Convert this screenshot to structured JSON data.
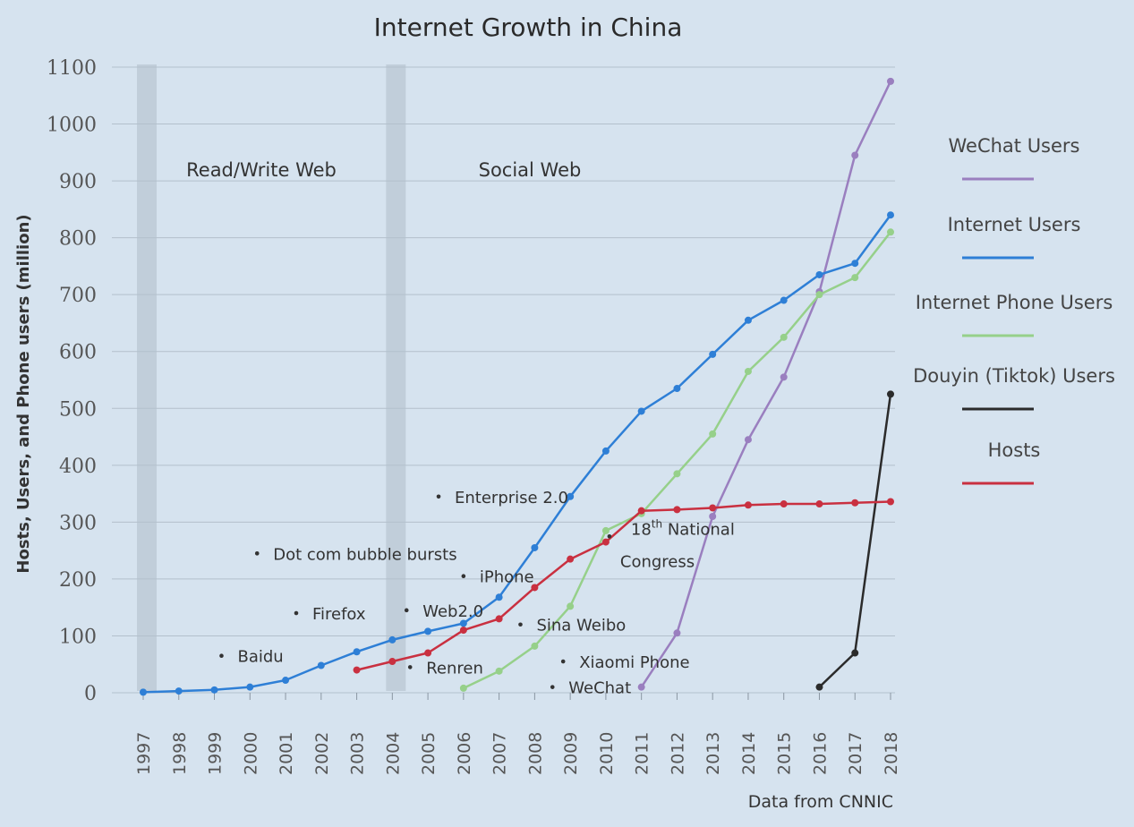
{
  "chart_data": {
    "type": "line",
    "title": "Internet Growth in China",
    "xlabel": "",
    "ylabel": "Hosts, Users, and Phone users (million)",
    "source": "Data from CNNIC",
    "ylim": [
      0,
      1100
    ],
    "yticks": [
      "0",
      "100",
      "200",
      "300",
      "400",
      "500",
      "600",
      "700",
      "800",
      "900",
      "1000",
      "1100"
    ],
    "categories": [
      "1997",
      "1998",
      "1999",
      "2000",
      "2001",
      "2002",
      "2003",
      "2004",
      "2005",
      "2006",
      "2007",
      "2008",
      "2009",
      "2010",
      "2011",
      "2012",
      "2013",
      "2014",
      "2015",
      "2016",
      "2017",
      "2018"
    ],
    "grid": true,
    "legend_position": "right",
    "eras": [
      {
        "label": "Read/Write Web",
        "start": "1997"
      },
      {
        "label": "Social Web",
        "start": "2004"
      }
    ],
    "series": [
      {
        "name": "WeChat Users",
        "color": "#9a7fbf",
        "values": [
          null,
          null,
          null,
          null,
          null,
          null,
          null,
          null,
          null,
          null,
          null,
          null,
          null,
          null,
          10,
          105,
          310,
          445,
          555,
          705,
          945,
          1075
        ]
      },
      {
        "name": "Internet Users",
        "color": "#2e7fd6",
        "values": [
          1,
          3,
          5,
          10,
          22,
          48,
          72,
          93,
          108,
          122,
          168,
          255,
          345,
          425,
          495,
          535,
          595,
          655,
          690,
          735,
          755,
          840
        ]
      },
      {
        "name": "Internet Phone Users",
        "color": "#96d08a",
        "values": [
          null,
          null,
          null,
          null,
          null,
          null,
          null,
          null,
          null,
          8,
          38,
          82,
          152,
          285,
          315,
          385,
          455,
          565,
          625,
          700,
          730,
          810
        ]
      },
      {
        "name": "Douyin (Tiktok) Users",
        "color": "#2b2b2b",
        "values": [
          null,
          null,
          null,
          null,
          null,
          null,
          null,
          null,
          null,
          null,
          null,
          null,
          null,
          null,
          null,
          null,
          null,
          null,
          null,
          10,
          70,
          525
        ]
      },
      {
        "name": "Hosts",
        "color": "#c93040",
        "values": [
          null,
          null,
          null,
          null,
          null,
          null,
          40,
          55,
          70,
          110,
          130,
          185,
          235,
          265,
          320,
          322,
          325,
          330,
          332,
          332,
          334,
          336
        ]
      }
    ],
    "annotations": [
      {
        "label": "Baidu",
        "x": 1999.2,
        "y": 65
      },
      {
        "label": "Dot com bubble bursts",
        "x": 2000.2,
        "y": 245
      },
      {
        "label": "Firefox",
        "x": 2001.3,
        "y": 140
      },
      {
        "label": "Web2.0",
        "x": 2004.4,
        "y": 145
      },
      {
        "label": "Renren",
        "x": 2004.5,
        "y": 45
      },
      {
        "label": "Enterprise 2.0",
        "x": 2005.3,
        "y": 345
      },
      {
        "label": "iPhone",
        "x": 2006.0,
        "y": 205
      },
      {
        "label": "Sina Weibo",
        "x": 2007.6,
        "y": 120
      },
      {
        "label": "Xiaomi Phone",
        "x": 2008.8,
        "y": 55
      },
      {
        "label": "WeChat",
        "x": 2008.5,
        "y": 10
      },
      {
        "label": "18th National Congress",
        "x": 2010.1,
        "y": 275
      }
    ]
  }
}
